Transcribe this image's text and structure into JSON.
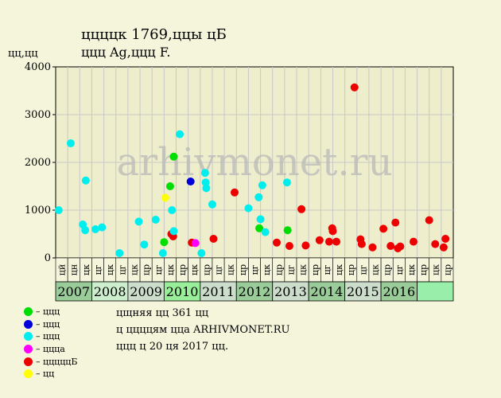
{
  "header": {
    "title": "ццццк 1769,ццы цБ",
    "subtitle": "ццц Ag,ццц F.",
    "ylabel": "цц,цц"
  },
  "legend": [
    {
      "label": "– ццц",
      "color": "#00dd00"
    },
    {
      "label": "– ццц",
      "color": "#0000dd"
    },
    {
      "label": "– ццц",
      "color": "#00eeee"
    },
    {
      "label": "– ццца",
      "color": "#ff00ff"
    },
    {
      "label": "– цццццБ",
      "color": "#ee0000"
    },
    {
      "label": "– цц",
      "color": "#ffff00"
    }
  ],
  "info": {
    "line1": "цщняя цц 361 цц",
    "line2": "ц ццццям цца ARHIVMONET.RU",
    "line3": "ццц ц 20 ця 2017 цц."
  },
  "watermark": "arhivmonet.ru",
  "chart_data": {
    "type": "scatter",
    "ylim": [
      0,
      4000
    ],
    "yticks": [
      0,
      1000,
      2000,
      3000,
      4000
    ],
    "months": [
      "цй",
      "цн",
      "цк",
      "цг",
      "цк",
      "цг",
      "цк",
      "цр",
      "цг",
      "цк",
      "цр",
      "цк",
      "цр",
      "цг",
      "цк",
      "цр",
      "цг",
      "цк",
      "цр",
      "цг",
      "цк",
      "цр",
      "цг",
      "цк",
      "цр",
      "цг",
      "цк",
      "цр",
      "цг",
      "цк",
      "цр",
      "цк",
      "цр"
    ],
    "years": [
      {
        "label": "2007",
        "span": 3,
        "color": "#99cc99"
      },
      {
        "label": "2008",
        "span": 3,
        "color": "#cceecc"
      },
      {
        "label": "2009",
        "span": 3,
        "color": "#ccddcc"
      },
      {
        "label": "2010",
        "span": 3,
        "color": "#99ee99"
      },
      {
        "label": "2011",
        "span": 3,
        "color": "#ccddcc"
      },
      {
        "label": "2012",
        "span": 3,
        "color": "#99cc99"
      },
      {
        "label": "2013",
        "span": 3,
        "color": "#ccddcc"
      },
      {
        "label": "2014",
        "span": 3,
        "color": "#99cc99"
      },
      {
        "label": "2015",
        "span": 3,
        "color": "#ccddcc"
      },
      {
        "label": "2016",
        "span": 3,
        "color": "#99cc99"
      },
      {
        "label": "",
        "span": 3,
        "color": "#99eeaa"
      }
    ],
    "colors": {
      "green": "#00dd00",
      "blue": "#0000dd",
      "cyan": "#00eeee",
      "magenta": "#ff00ff",
      "red": "#ee0000",
      "yellow": "#ffff00"
    },
    "points": [
      {
        "x": 0.25,
        "y": 1000,
        "c": "cyan"
      },
      {
        "x": 1.25,
        "y": 2400,
        "c": "cyan"
      },
      {
        "x": 2.25,
        "y": 700,
        "c": "cyan"
      },
      {
        "x": 2.45,
        "y": 580,
        "c": "cyan"
      },
      {
        "x": 2.5,
        "y": 1620,
        "c": "cyan"
      },
      {
        "x": 3.3,
        "y": 600,
        "c": "cyan"
      },
      {
        "x": 3.85,
        "y": 640,
        "c": "cyan"
      },
      {
        "x": 5.3,
        "y": 100,
        "c": "cyan"
      },
      {
        "x": 6.9,
        "y": 760,
        "c": "cyan"
      },
      {
        "x": 7.35,
        "y": 280,
        "c": "cyan"
      },
      {
        "x": 8.3,
        "y": 800,
        "c": "cyan"
      },
      {
        "x": 8.9,
        "y": 100,
        "c": "cyan"
      },
      {
        "x": 9.0,
        "y": 330,
        "c": "green"
      },
      {
        "x": 9.1,
        "y": 1260,
        "c": "yellow"
      },
      {
        "x": 9.5,
        "y": 1500,
        "c": "green"
      },
      {
        "x": 9.6,
        "y": 500,
        "c": "red"
      },
      {
        "x": 9.65,
        "y": 1000,
        "c": "cyan"
      },
      {
        "x": 9.75,
        "y": 450,
        "c": "red"
      },
      {
        "x": 9.8,
        "y": 560,
        "c": "cyan"
      },
      {
        "x": 9.8,
        "y": 2120,
        "c": "green"
      },
      {
        "x": 10.3,
        "y": 2590,
        "c": "cyan"
      },
      {
        "x": 11.2,
        "y": 1600,
        "c": "blue"
      },
      {
        "x": 11.3,
        "y": 320,
        "c": "red"
      },
      {
        "x": 11.6,
        "y": 310,
        "c": "magenta"
      },
      {
        "x": 12.1,
        "y": 100,
        "c": "cyan"
      },
      {
        "x": 12.4,
        "y": 1780,
        "c": "cyan"
      },
      {
        "x": 12.45,
        "y": 1580,
        "c": "cyan"
      },
      {
        "x": 12.5,
        "y": 1460,
        "c": "cyan"
      },
      {
        "x": 13.0,
        "y": 1120,
        "c": "cyan"
      },
      {
        "x": 13.1,
        "y": 400,
        "c": "red"
      },
      {
        "x": 14.85,
        "y": 1370,
        "c": "red"
      },
      {
        "x": 16.0,
        "y": 1040,
        "c": "cyan"
      },
      {
        "x": 16.85,
        "y": 1270,
        "c": "cyan"
      },
      {
        "x": 16.9,
        "y": 620,
        "c": "green"
      },
      {
        "x": 17.0,
        "y": 810,
        "c": "cyan"
      },
      {
        "x": 17.15,
        "y": 1520,
        "c": "cyan"
      },
      {
        "x": 17.4,
        "y": 540,
        "c": "cyan"
      },
      {
        "x": 18.35,
        "y": 320,
        "c": "red"
      },
      {
        "x": 19.2,
        "y": 1580,
        "c": "cyan"
      },
      {
        "x": 19.25,
        "y": 580,
        "c": "green"
      },
      {
        "x": 19.4,
        "y": 250,
        "c": "red"
      },
      {
        "x": 20.4,
        "y": 1020,
        "c": "red"
      },
      {
        "x": 20.75,
        "y": 260,
        "c": "red"
      },
      {
        "x": 21.9,
        "y": 370,
        "c": "red"
      },
      {
        "x": 22.7,
        "y": 340,
        "c": "red"
      },
      {
        "x": 22.95,
        "y": 620,
        "c": "red"
      },
      {
        "x": 23.0,
        "y": 560,
        "c": "red"
      },
      {
        "x": 23.3,
        "y": 340,
        "c": "red"
      },
      {
        "x": 24.8,
        "y": 3570,
        "c": "red"
      },
      {
        "x": 25.3,
        "y": 390,
        "c": "red"
      },
      {
        "x": 25.4,
        "y": 290,
        "c": "red"
      },
      {
        "x": 26.3,
        "y": 220,
        "c": "red"
      },
      {
        "x": 27.2,
        "y": 610,
        "c": "red"
      },
      {
        "x": 27.8,
        "y": 250,
        "c": "red"
      },
      {
        "x": 28.2,
        "y": 740,
        "c": "red"
      },
      {
        "x": 28.4,
        "y": 200,
        "c": "red"
      },
      {
        "x": 28.6,
        "y": 240,
        "c": "red"
      },
      {
        "x": 29.7,
        "y": 340,
        "c": "red"
      },
      {
        "x": 31.0,
        "y": 790,
        "c": "red"
      },
      {
        "x": 31.5,
        "y": 290,
        "c": "red"
      },
      {
        "x": 32.2,
        "y": 220,
        "c": "red"
      },
      {
        "x": 32.35,
        "y": 400,
        "c": "red"
      }
    ]
  }
}
